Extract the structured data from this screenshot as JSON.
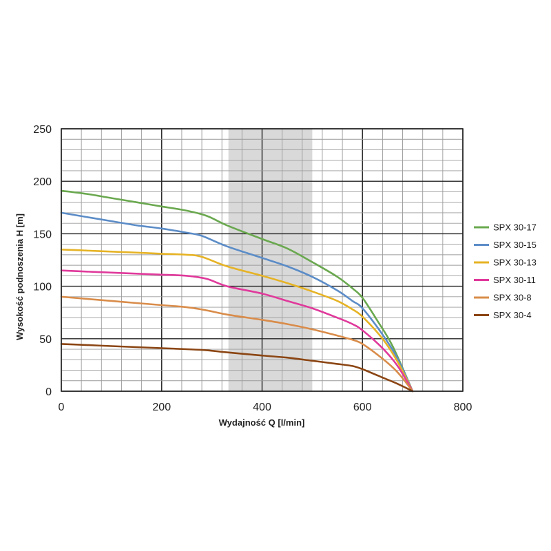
{
  "chart_data": {
    "type": "line",
    "title": "",
    "xlabel": "Wydajność Q [l/min]",
    "ylabel": "Wysokość podnoszenia H [m]",
    "xlim": [
      0,
      800
    ],
    "ylim": [
      0,
      250
    ],
    "x_ticks": [
      "0",
      "200",
      "400",
      "600",
      "800"
    ],
    "y_ticks": [
      "0",
      "50",
      "100",
      "150",
      "200",
      "250"
    ],
    "x_tick_values": [
      0,
      200,
      400,
      600,
      800
    ],
    "y_tick_values": [
      0,
      50,
      100,
      150,
      200,
      250
    ],
    "grid": true,
    "highlight_range_x": [
      333,
      500
    ],
    "highlight_color": "#d9d9d9",
    "legend_position": "right",
    "series": [
      {
        "name": "SPX 30-17",
        "color": "#6aa84f",
        "points": [
          [
            0,
            191
          ],
          [
            50,
            188
          ],
          [
            100,
            184
          ],
          [
            150,
            180
          ],
          [
            200,
            176
          ],
          [
            250,
            172
          ],
          [
            290,
            167
          ],
          [
            330,
            158
          ],
          [
            400,
            145
          ],
          [
            450,
            136
          ],
          [
            500,
            123
          ],
          [
            550,
            109
          ],
          [
            580,
            98
          ],
          [
            600,
            89
          ],
          [
            630,
            67
          ],
          [
            660,
            43
          ],
          [
            700,
            0
          ]
        ]
      },
      {
        "name": "SPX 30-15",
        "color": "#5b8cc7",
        "points": [
          [
            0,
            170
          ],
          [
            50,
            166
          ],
          [
            100,
            162
          ],
          [
            150,
            158
          ],
          [
            200,
            155
          ],
          [
            250,
            151
          ],
          [
            280,
            148
          ],
          [
            330,
            138
          ],
          [
            400,
            127
          ],
          [
            450,
            119
          ],
          [
            500,
            109
          ],
          [
            550,
            96
          ],
          [
            580,
            86
          ],
          [
            600,
            79
          ],
          [
            640,
            54
          ],
          [
            670,
            31
          ],
          [
            700,
            0
          ]
        ]
      },
      {
        "name": "SPX 30-13",
        "color": "#e6b325",
        "points": [
          [
            0,
            135
          ],
          [
            50,
            134
          ],
          [
            100,
            133
          ],
          [
            150,
            132
          ],
          [
            200,
            131
          ],
          [
            250,
            130
          ],
          [
            280,
            128
          ],
          [
            330,
            119
          ],
          [
            400,
            110
          ],
          [
            450,
            103
          ],
          [
            500,
            95
          ],
          [
            550,
            86
          ],
          [
            580,
            78
          ],
          [
            600,
            71
          ],
          [
            640,
            50
          ],
          [
            670,
            28
          ],
          [
            700,
            0
          ]
        ]
      },
      {
        "name": "SPX 30-11",
        "color": "#e0399b",
        "points": [
          [
            0,
            115
          ],
          [
            50,
            114
          ],
          [
            100,
            113
          ],
          [
            150,
            112
          ],
          [
            200,
            111
          ],
          [
            250,
            110
          ],
          [
            290,
            107
          ],
          [
            330,
            100
          ],
          [
            400,
            93
          ],
          [
            450,
            86
          ],
          [
            500,
            79
          ],
          [
            550,
            70
          ],
          [
            580,
            64
          ],
          [
            600,
            58
          ],
          [
            640,
            41
          ],
          [
            670,
            24
          ],
          [
            700,
            0
          ]
        ]
      },
      {
        "name": "SPX 30-8",
        "color": "#d98c4a",
        "points": [
          [
            0,
            90
          ],
          [
            50,
            88
          ],
          [
            100,
            86
          ],
          [
            150,
            84
          ],
          [
            200,
            82
          ],
          [
            250,
            80
          ],
          [
            290,
            77
          ],
          [
            330,
            73
          ],
          [
            400,
            68
          ],
          [
            450,
            64
          ],
          [
            500,
            59
          ],
          [
            550,
            53
          ],
          [
            580,
            49
          ],
          [
            600,
            45
          ],
          [
            640,
            31
          ],
          [
            670,
            18
          ],
          [
            700,
            0
          ]
        ]
      },
      {
        "name": "SPX 30-4",
        "color": "#8b4513",
        "points": [
          [
            0,
            45
          ],
          [
            50,
            44
          ],
          [
            100,
            43
          ],
          [
            150,
            42
          ],
          [
            200,
            41
          ],
          [
            250,
            40
          ],
          [
            290,
            39
          ],
          [
            330,
            37
          ],
          [
            400,
            34
          ],
          [
            450,
            32
          ],
          [
            500,
            29
          ],
          [
            550,
            26
          ],
          [
            580,
            24
          ],
          [
            600,
            21
          ],
          [
            640,
            13
          ],
          [
            670,
            7
          ],
          [
            700,
            0
          ]
        ]
      }
    ]
  }
}
